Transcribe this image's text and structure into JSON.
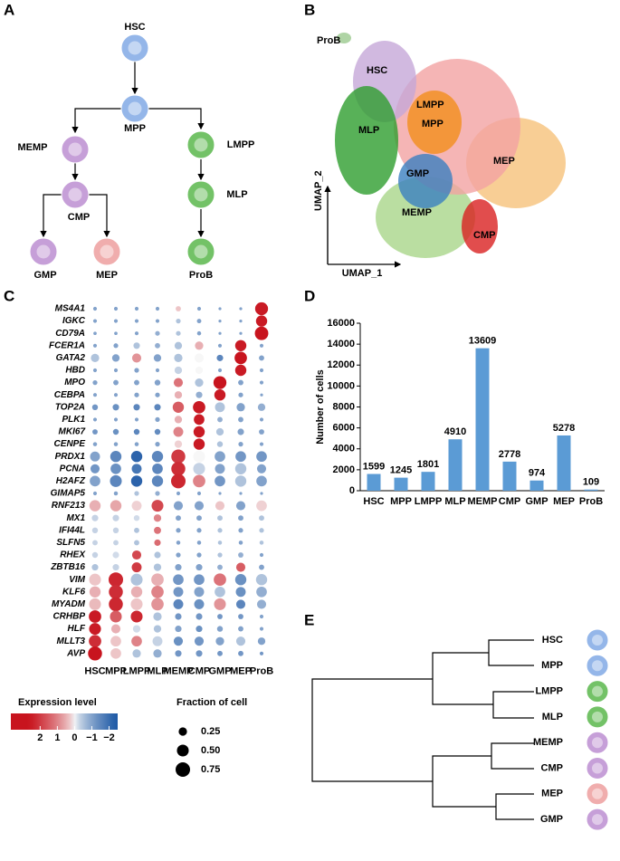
{
  "panel_labels": [
    "A",
    "B",
    "C",
    "D",
    "E"
  ],
  "lineage_tree": {
    "nodes": [
      {
        "label": "HSC",
        "color": "#8fb3e8"
      },
      {
        "label": "MPP",
        "color": "#8fb3e8"
      },
      {
        "label": "MEMP",
        "color": "#c49ad6"
      },
      {
        "label": "LMPP",
        "color": "#6cbf5f"
      },
      {
        "label": "CMP",
        "color": "#c49ad6"
      },
      {
        "label": "MLP",
        "color": "#6cbf5f"
      },
      {
        "label": "GMP",
        "color": "#c49ad6"
      },
      {
        "label": "MEP",
        "color": "#f0a9a9"
      },
      {
        "label": "ProB",
        "color": "#6cbf5f"
      }
    ]
  },
  "umap": {
    "x_label": "UMAP_1",
    "y_label": "UMAP_2",
    "clusters": [
      {
        "label": "ProB",
        "color": "#9bc98f"
      },
      {
        "label": "HSC",
        "color": "#c6a8d8"
      },
      {
        "label": "LMPP",
        "color": "#f2a3a3"
      },
      {
        "label": "MPP",
        "color": "#f28e1c"
      },
      {
        "label": "MLP",
        "color": "#2e9e2e"
      },
      {
        "label": "GMP",
        "color": "#3b7fc0"
      },
      {
        "label": "MEP",
        "color": "#f6c27a"
      },
      {
        "label": "MEMP",
        "color": "#a9d68a"
      },
      {
        "label": "CMP",
        "color": "#d92020"
      }
    ]
  },
  "chart_data": [
    {
      "type": "dot",
      "categories": [
        "HSC",
        "MPP",
        "LMPP",
        "MLP",
        "MEMP",
        "CMP",
        "GMP",
        "MEP",
        "ProB"
      ],
      "genes": [
        "MS4A1",
        "IGKC",
        "CD79A",
        "FCER1A",
        "GATA2",
        "HBD",
        "MPO",
        "CEBPA",
        "TOP2A",
        "PLK1",
        "MKI67",
        "CENPE",
        "PRDX1",
        "PCNA",
        "H2AFZ",
        "GIMAP5",
        "RNF213",
        "MX1",
        "IFI44L",
        "SLFN5",
        "RHEX",
        "ZBTB16",
        "VIM",
        "KLF6",
        "MYADM",
        "CRHBP",
        "HLF",
        "MLLT3",
        "AVP"
      ],
      "expression": [
        [
          -1,
          -1,
          -1,
          -1,
          0.3,
          -1,
          -1,
          -1,
          2.5
        ],
        [
          -1,
          -1,
          -1,
          -1,
          -0.5,
          -1,
          -1,
          -1,
          2.5
        ],
        [
          -1,
          -1,
          -1,
          -0.8,
          -0.5,
          -1,
          -1,
          -1,
          3
        ],
        [
          -1,
          -1,
          -0.5,
          -0.8,
          -0.5,
          0.5,
          -1,
          2.5,
          -1
        ],
        [
          -0.5,
          -1,
          0.8,
          -1,
          -0.5,
          0,
          -1.5,
          2.6,
          -1
        ],
        [
          -1,
          -1,
          -1,
          -1,
          -0.3,
          0,
          -1,
          2.5,
          -1
        ],
        [
          -1,
          -1,
          -1,
          -1,
          1.2,
          -0.5,
          3,
          -1,
          -1
        ],
        [
          -1,
          -1,
          -1,
          -1,
          0.5,
          -0.8,
          2.5,
          -1,
          -1
        ],
        [
          -1.2,
          -1.3,
          -1.5,
          -1.5,
          1.5,
          2.5,
          -0.5,
          -1,
          -0.8
        ],
        [
          -1,
          -1,
          -1,
          -1,
          0.5,
          2.5,
          -0.8,
          -1,
          -1
        ],
        [
          -1.2,
          -1.3,
          -1.5,
          -1.4,
          1,
          2.5,
          -0.5,
          -1,
          -1
        ],
        [
          -1,
          -1,
          -1,
          -1,
          0.2,
          2.5,
          -0.5,
          -1,
          -1
        ],
        [
          -1,
          -1.5,
          -2.2,
          -1.5,
          2,
          0,
          -1,
          -1.2,
          -1.2
        ],
        [
          -1.2,
          -1.3,
          -1.8,
          -1.5,
          2.2,
          -0.3,
          -1,
          -0.5,
          -1
        ],
        [
          -1,
          -1.5,
          -2.2,
          -1.5,
          2.3,
          1,
          -1.2,
          -0.5,
          -1
        ],
        [
          -1,
          -1,
          -0.5,
          -0.8,
          -1,
          -1,
          -1,
          -1,
          -1
        ],
        [
          0.5,
          0.6,
          0.2,
          1.8,
          -1,
          -1,
          0.3,
          -1,
          0.2
        ],
        [
          -0.3,
          -0.3,
          -0.2,
          1,
          -1,
          -1,
          -0.5,
          -1,
          -0.5
        ],
        [
          -0.3,
          -0.3,
          -0.5,
          1.2,
          -1,
          -1,
          -0.5,
          -1,
          -0.5
        ],
        [
          -0.3,
          -0.3,
          -0.5,
          1.3,
          -1,
          -1,
          -0.5,
          -1,
          -0.5
        ],
        [
          -0.3,
          -0.2,
          1.8,
          -0.5,
          -1,
          -1,
          -0.5,
          -0.8,
          -1
        ],
        [
          -0.5,
          -0.3,
          2,
          -0.5,
          -1,
          -1,
          -0.8,
          1.5,
          -1
        ],
        [
          0.3,
          2.3,
          -0.5,
          0.5,
          -1.2,
          -1.2,
          1.2,
          -1.3,
          -0.5
        ],
        [
          0.5,
          2.2,
          0.5,
          1,
          -1.2,
          -1,
          -0.5,
          -1.3,
          -0.8
        ],
        [
          0.4,
          2.3,
          0.3,
          0.8,
          -1.5,
          -1.3,
          0.8,
          -1.5,
          -0.8
        ],
        [
          2.5,
          1.5,
          2.3,
          -0.5,
          -1.2,
          -1.2,
          -1.2,
          -1.2,
          -1
        ],
        [
          2.5,
          0.5,
          -0.2,
          -0.5,
          -1,
          -1.3,
          -1,
          -1,
          -1
        ],
        [
          2.2,
          0.3,
          1,
          -0.3,
          -1.3,
          -1.2,
          -1,
          -0.5,
          -1
        ],
        [
          2.6,
          0.3,
          -0.5,
          -0.8,
          -1.2,
          -1.2,
          -1.2,
          -1.2,
          -1.2
        ]
      ],
      "fraction": [
        [
          0.05,
          0.05,
          0.05,
          0.05,
          0.1,
          0.05,
          0.03,
          0.03,
          0.6
        ],
        [
          0.05,
          0.05,
          0.05,
          0.05,
          0.08,
          0.07,
          0.03,
          0.03,
          0.45
        ],
        [
          0.04,
          0.04,
          0.05,
          0.08,
          0.08,
          0.06,
          0.03,
          0.03,
          0.65
        ],
        [
          0.05,
          0.08,
          0.15,
          0.1,
          0.2,
          0.25,
          0.05,
          0.45,
          0.05
        ],
        [
          0.25,
          0.2,
          0.3,
          0.2,
          0.25,
          0.3,
          0.15,
          0.55,
          0.1
        ],
        [
          0.05,
          0.05,
          0.08,
          0.05,
          0.2,
          0.2,
          0.05,
          0.45,
          0.05
        ],
        [
          0.08,
          0.1,
          0.1,
          0.12,
          0.3,
          0.25,
          0.6,
          0.1,
          0.05
        ],
        [
          0.05,
          0.05,
          0.08,
          0.08,
          0.2,
          0.15,
          0.45,
          0.08,
          0.03
        ],
        [
          0.12,
          0.15,
          0.15,
          0.15,
          0.45,
          0.55,
          0.35,
          0.25,
          0.2
        ],
        [
          0.05,
          0.05,
          0.05,
          0.08,
          0.2,
          0.4,
          0.1,
          0.1,
          0.05
        ],
        [
          0.1,
          0.12,
          0.12,
          0.12,
          0.35,
          0.45,
          0.2,
          0.15,
          0.1
        ],
        [
          0.06,
          0.06,
          0.06,
          0.08,
          0.2,
          0.45,
          0.12,
          0.08,
          0.05
        ],
        [
          0.35,
          0.45,
          0.45,
          0.45,
          0.7,
          0.5,
          0.4,
          0.4,
          0.4
        ],
        [
          0.3,
          0.4,
          0.35,
          0.4,
          0.7,
          0.5,
          0.35,
          0.45,
          0.3
        ],
        [
          0.4,
          0.5,
          0.45,
          0.45,
          0.75,
          0.55,
          0.4,
          0.45,
          0.4
        ],
        [
          0.05,
          0.06,
          0.08,
          0.08,
          0.05,
          0.05,
          0.03,
          0.03,
          0.03
        ],
        [
          0.45,
          0.45,
          0.35,
          0.5,
          0.3,
          0.3,
          0.3,
          0.3,
          0.4
        ],
        [
          0.15,
          0.15,
          0.12,
          0.2,
          0.1,
          0.1,
          0.1,
          0.1,
          0.1
        ],
        [
          0.12,
          0.12,
          0.1,
          0.18,
          0.08,
          0.08,
          0.08,
          0.08,
          0.08
        ],
        [
          0.1,
          0.1,
          0.1,
          0.15,
          0.06,
          0.06,
          0.06,
          0.06,
          0.06
        ],
        [
          0.12,
          0.15,
          0.3,
          0.15,
          0.08,
          0.08,
          0.08,
          0.1,
          0.05
        ],
        [
          0.15,
          0.15,
          0.35,
          0.2,
          0.15,
          0.15,
          0.1,
          0.3,
          0.1
        ],
        [
          0.5,
          0.75,
          0.5,
          0.55,
          0.4,
          0.4,
          0.55,
          0.45,
          0.45
        ],
        [
          0.45,
          0.7,
          0.45,
          0.55,
          0.35,
          0.35,
          0.4,
          0.35,
          0.4
        ],
        [
          0.5,
          0.7,
          0.5,
          0.55,
          0.35,
          0.35,
          0.5,
          0.3,
          0.3
        ],
        [
          0.55,
          0.5,
          0.5,
          0.25,
          0.15,
          0.15,
          0.1,
          0.1,
          0.05
        ],
        [
          0.5,
          0.3,
          0.2,
          0.2,
          0.15,
          0.15,
          0.12,
          0.1,
          0.05
        ],
        [
          0.55,
          0.4,
          0.4,
          0.35,
          0.3,
          0.3,
          0.25,
          0.3,
          0.2
        ],
        [
          0.7,
          0.4,
          0.25,
          0.25,
          0.15,
          0.15,
          0.1,
          0.1,
          0.05
        ]
      ],
      "color_legend": {
        "title": "Expression level",
        "lim": [
          3.7,
          -2.5
        ],
        "colors": [
          "#c8141e",
          "#f7f7f7",
          "#1f5aa6"
        ],
        "ticks": [
          2,
          1,
          0,
          {
            "value": -1,
            "label": "−1"
          },
          {
            "value": -2,
            "label": "−2"
          }
        ]
      },
      "size_legend": {
        "title": "Fraction of cell",
        "ticks": [
          0.25,
          {
            "value": 0.5,
            "label": "0.50"
          },
          0.75
        ]
      }
    },
    {
      "type": "bar",
      "y_label": "Number of cells",
      "color": "#5b9bd5",
      "categories": [
        "HSC",
        "MPP",
        "LMPP",
        "MLP",
        "MEMP",
        "CMP",
        "GMP",
        "MEP",
        "ProB"
      ],
      "values": [
        1599,
        1245,
        1801,
        4910,
        13609,
        2778,
        974,
        5278,
        109
      ],
      "ylim": [
        0,
        16000
      ],
      "yticks": [
        0,
        2000,
        4000,
        6000,
        8000,
        10000,
        12000,
        14000,
        16000
      ]
    }
  ],
  "dendrogram": {
    "leaves": [
      {
        "label": "HSC",
        "color": "#8fb3e8"
      },
      {
        "label": "MPP",
        "color": "#8fb3e8"
      },
      {
        "label": "LMPP",
        "color": "#6cbf5f"
      },
      {
        "label": "MLP",
        "color": "#6cbf5f"
      },
      {
        "label": "MEMP",
        "color": "#c49ad6"
      },
      {
        "label": "CMP",
        "color": "#c49ad6"
      },
      {
        "label": "MEP",
        "color": "#f0a9a9"
      },
      {
        "label": "GMP",
        "color": "#c49ad6"
      }
    ]
  }
}
